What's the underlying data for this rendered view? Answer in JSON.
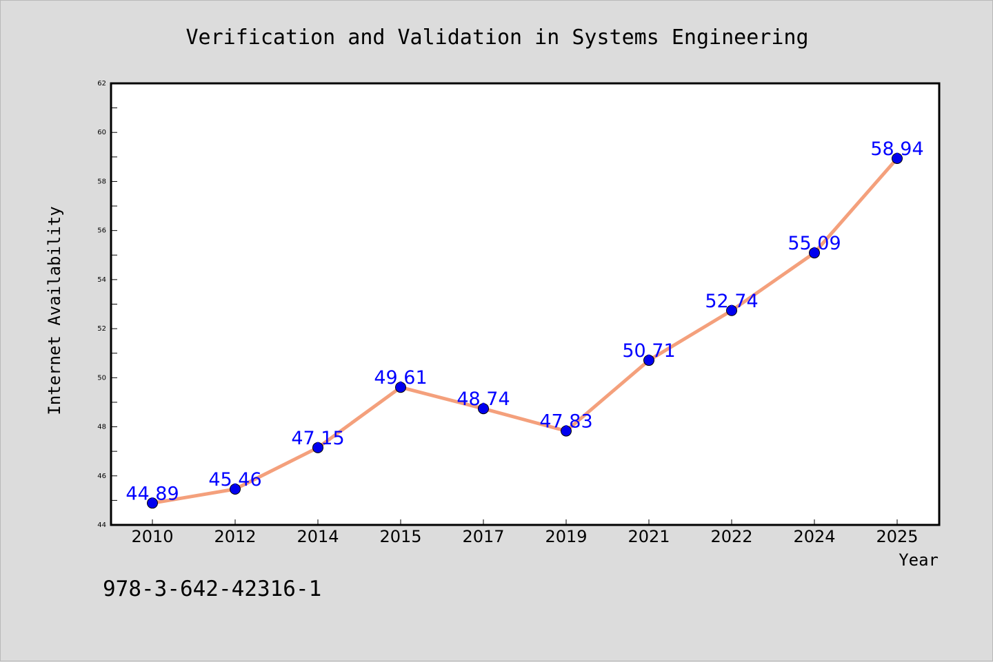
{
  "chart_data": {
    "type": "line",
    "title": "Verification and Validation in Systems Engineering",
    "xlabel": "Year",
    "ylabel": "Internet Availability",
    "categories": [
      "2010",
      "2012",
      "2014",
      "2015",
      "2017",
      "2019",
      "2021",
      "2022",
      "2024",
      "2025"
    ],
    "series": [
      {
        "values": [
          44.89,
          45.46,
          47.15,
          49.61,
          48.74,
          47.83,
          50.71,
          52.74,
          55.09,
          58.94
        ],
        "value_labels": [
          "44.89",
          "45.46",
          "47.15",
          "49.61",
          "48.74",
          "47.83",
          "50.71",
          "52.74",
          "55.09",
          "58.94"
        ]
      }
    ],
    "ylim": [
      44,
      62
    ],
    "yticks": [
      "44",
      "46",
      "48",
      "50",
      "52",
      "54",
      "56",
      "58",
      "60",
      "62"
    ],
    "grid": false,
    "legend": "none",
    "colors": {
      "line": "#f4a07c",
      "marker": "#0000ee",
      "label": "#0000ff",
      "background": "#dcdcdc",
      "plot_background": "#ffffff"
    }
  },
  "footer_text": "978-3-642-42316-1"
}
